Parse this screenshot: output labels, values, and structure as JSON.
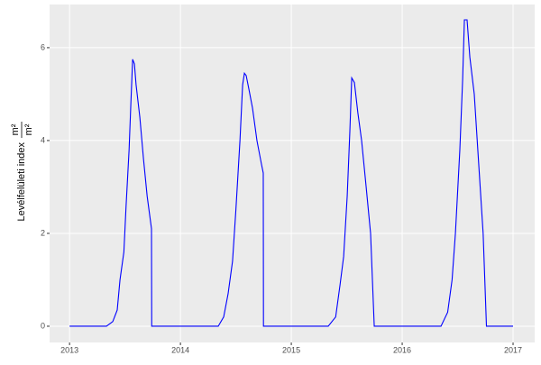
{
  "chart_data": {
    "type": "line",
    "ylabel": "Levélfelületi index",
    "ylabel_unit_numerator": "m²",
    "ylabel_unit_denominator": "m²",
    "xlim": [
      2012.82,
      2017.195
    ],
    "xticks": [
      2013,
      2014,
      2015,
      2016,
      2017
    ],
    "ylim": [
      -0.35,
      6.93
    ],
    "yticks": [
      0,
      2,
      4,
      6
    ],
    "grid": true,
    "series": [
      {
        "color": "#0000ff",
        "x": [
          2013.0,
          2013.333,
          2013.39,
          2013.43,
          2013.455,
          2013.49,
          2013.51,
          2013.537,
          2013.553,
          2013.569,
          2013.585,
          2013.6,
          2013.634,
          2013.667,
          2013.7,
          2013.739,
          2013.741,
          2014.341,
          2014.39,
          2014.43,
          2014.47,
          2014.5,
          2014.537,
          2014.561,
          2014.577,
          2014.593,
          2014.618,
          2014.65,
          2014.69,
          2014.73,
          2014.747,
          2014.749,
          2015.333,
          2015.4,
          2015.44,
          2015.472,
          2015.504,
          2015.528,
          2015.545,
          2015.569,
          2015.6,
          2015.634,
          2015.675,
          2015.715,
          2015.748,
          2016.35,
          2016.41,
          2016.45,
          2016.48,
          2016.52,
          2016.545,
          2016.561,
          2016.585,
          2016.61,
          2016.65,
          2016.69,
          2016.73,
          2016.76,
          2017.0
        ],
        "values": [
          0,
          0,
          0.1,
          0.35,
          1.0,
          1.6,
          2.6,
          3.8,
          4.8,
          5.75,
          5.65,
          5.2,
          4.5,
          3.6,
          2.8,
          2.1,
          0,
          0,
          0.2,
          0.7,
          1.4,
          2.5,
          4.0,
          5.2,
          5.45,
          5.4,
          5.1,
          4.7,
          4.0,
          3.5,
          3.3,
          0,
          0,
          0.2,
          0.9,
          1.5,
          2.8,
          4.2,
          5.35,
          5.25,
          4.6,
          4.0,
          3.0,
          2.0,
          0,
          0,
          0.3,
          1.0,
          2.0,
          3.8,
          5.3,
          6.6,
          6.6,
          5.8,
          5.0,
          3.5,
          2.0,
          0,
          0
        ]
      }
    ]
  }
}
